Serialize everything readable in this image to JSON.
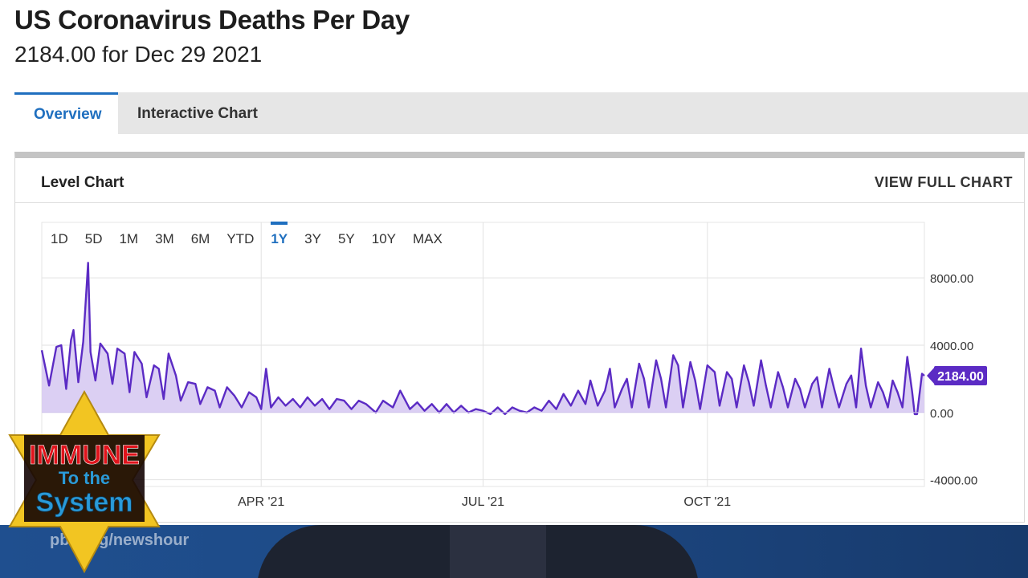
{
  "header": {
    "title": "US Coronavirus Deaths Per Day",
    "subtitle": "2184.00 for Dec 29 2021"
  },
  "tabs": [
    {
      "label": "Overview",
      "active": true
    },
    {
      "label": "Interactive Chart",
      "active": false
    }
  ],
  "panel": {
    "title": "Level Chart",
    "view_full_label": "VIEW FULL CHART"
  },
  "ranges": [
    "1D",
    "5D",
    "1M",
    "3M",
    "6M",
    "YTD",
    "1Y",
    "3Y",
    "5Y",
    "10Y",
    "MAX"
  ],
  "active_range": "1Y",
  "colors": {
    "accent": "#1f6fbf",
    "line": "#5b2bc4",
    "fill": "#d9ccf2",
    "badge_star": "#f2c522",
    "badge_text_red": "#e0141c",
    "badge_text_blue": "#2a9ad8"
  },
  "badge": {
    "line1": "IMMUNE",
    "line2": "To the",
    "line3": "System"
  },
  "watermark": "pbs.org/newshour",
  "chart_data": {
    "type": "area",
    "x_start": "2021-01-01",
    "x_end": "2021-12-29",
    "x_ticks": [
      {
        "date": "2021-04-01",
        "label": "APR '21"
      },
      {
        "date": "2021-07-01",
        "label": "JUL '21"
      },
      {
        "date": "2021-10-01",
        "label": "OCT '21"
      }
    ],
    "y_ticks": [
      8000,
      4000,
      0,
      -4000
    ],
    "y_tick_labels": [
      "8000.00",
      "4000.00",
      "0.00",
      "-4000.00"
    ],
    "ylim": [
      -4400,
      11300
    ],
    "last_value": 2184,
    "last_value_label": "2184.00",
    "grid": true,
    "series": [
      {
        "points": [
          [
            "2021-01-01",
            3700
          ],
          [
            "2021-01-04",
            1600
          ],
          [
            "2021-01-07",
            3900
          ],
          [
            "2021-01-09",
            4000
          ],
          [
            "2021-01-11",
            1400
          ],
          [
            "2021-01-13",
            4300
          ],
          [
            "2021-01-14",
            4900
          ],
          [
            "2021-01-16",
            1800
          ],
          [
            "2021-01-18",
            4200
          ],
          [
            "2021-01-20",
            8900
          ],
          [
            "2021-01-21",
            3600
          ],
          [
            "2021-01-23",
            1900
          ],
          [
            "2021-01-25",
            4100
          ],
          [
            "2021-01-28",
            3500
          ],
          [
            "2021-01-30",
            1700
          ],
          [
            "2021-02-01",
            3800
          ],
          [
            "2021-02-04",
            3500
          ],
          [
            "2021-02-06",
            1200
          ],
          [
            "2021-02-08",
            3600
          ],
          [
            "2021-02-11",
            2900
          ],
          [
            "2021-02-13",
            900
          ],
          [
            "2021-02-16",
            2800
          ],
          [
            "2021-02-18",
            2600
          ],
          [
            "2021-02-20",
            800
          ],
          [
            "2021-02-22",
            3500
          ],
          [
            "2021-02-25",
            2200
          ],
          [
            "2021-02-27",
            700
          ],
          [
            "2021-03-02",
            1800
          ],
          [
            "2021-03-05",
            1700
          ],
          [
            "2021-03-07",
            500
          ],
          [
            "2021-03-10",
            1500
          ],
          [
            "2021-03-13",
            1300
          ],
          [
            "2021-03-15",
            300
          ],
          [
            "2021-03-18",
            1500
          ],
          [
            "2021-03-21",
            1000
          ],
          [
            "2021-03-24",
            300
          ],
          [
            "2021-03-27",
            1200
          ],
          [
            "2021-03-30",
            900
          ],
          [
            "2021-04-01",
            200
          ],
          [
            "2021-04-03",
            2600
          ],
          [
            "2021-04-05",
            300
          ],
          [
            "2021-04-08",
            900
          ],
          [
            "2021-04-11",
            400
          ],
          [
            "2021-04-14",
            800
          ],
          [
            "2021-04-17",
            300
          ],
          [
            "2021-04-20",
            900
          ],
          [
            "2021-04-23",
            400
          ],
          [
            "2021-04-26",
            800
          ],
          [
            "2021-04-29",
            200
          ],
          [
            "2021-05-02",
            800
          ],
          [
            "2021-05-05",
            700
          ],
          [
            "2021-05-08",
            200
          ],
          [
            "2021-05-11",
            700
          ],
          [
            "2021-05-14",
            500
          ],
          [
            "2021-05-18",
            0
          ],
          [
            "2021-05-21",
            700
          ],
          [
            "2021-05-25",
            300
          ],
          [
            "2021-05-28",
            1300
          ],
          [
            "2021-06-01",
            200
          ],
          [
            "2021-06-04",
            600
          ],
          [
            "2021-06-07",
            100
          ],
          [
            "2021-06-10",
            500
          ],
          [
            "2021-06-13",
            0
          ],
          [
            "2021-06-16",
            500
          ],
          [
            "2021-06-19",
            0
          ],
          [
            "2021-06-22",
            400
          ],
          [
            "2021-06-25",
            0
          ],
          [
            "2021-06-28",
            200
          ],
          [
            "2021-07-01",
            100
          ],
          [
            "2021-07-04",
            -100
          ],
          [
            "2021-07-07",
            300
          ],
          [
            "2021-07-10",
            -100
          ],
          [
            "2021-07-13",
            300
          ],
          [
            "2021-07-16",
            100
          ],
          [
            "2021-07-19",
            0
          ],
          [
            "2021-07-22",
            300
          ],
          [
            "2021-07-25",
            100
          ],
          [
            "2021-07-28",
            700
          ],
          [
            "2021-07-31",
            200
          ],
          [
            "2021-08-03",
            1100
          ],
          [
            "2021-08-06",
            400
          ],
          [
            "2021-08-09",
            1300
          ],
          [
            "2021-08-12",
            500
          ],
          [
            "2021-08-14",
            1900
          ],
          [
            "2021-08-17",
            400
          ],
          [
            "2021-08-20",
            1300
          ],
          [
            "2021-08-22",
            2600
          ],
          [
            "2021-08-24",
            300
          ],
          [
            "2021-08-27",
            1400
          ],
          [
            "2021-08-29",
            2000
          ],
          [
            "2021-08-31",
            300
          ],
          [
            "2021-09-03",
            2900
          ],
          [
            "2021-09-05",
            2000
          ],
          [
            "2021-09-07",
            300
          ],
          [
            "2021-09-10",
            3100
          ],
          [
            "2021-09-12",
            2000
          ],
          [
            "2021-09-14",
            300
          ],
          [
            "2021-09-17",
            3400
          ],
          [
            "2021-09-19",
            2800
          ],
          [
            "2021-09-21",
            300
          ],
          [
            "2021-09-24",
            3000
          ],
          [
            "2021-09-26",
            1900
          ],
          [
            "2021-09-28",
            200
          ],
          [
            "2021-10-01",
            2800
          ],
          [
            "2021-10-04",
            2400
          ],
          [
            "2021-10-06",
            400
          ],
          [
            "2021-10-09",
            2400
          ],
          [
            "2021-10-11",
            2000
          ],
          [
            "2021-10-13",
            300
          ],
          [
            "2021-10-16",
            2800
          ],
          [
            "2021-10-18",
            1800
          ],
          [
            "2021-10-20",
            400
          ],
          [
            "2021-10-23",
            3100
          ],
          [
            "2021-10-25",
            1600
          ],
          [
            "2021-10-27",
            300
          ],
          [
            "2021-10-30",
            2400
          ],
          [
            "2021-11-01",
            1500
          ],
          [
            "2021-11-03",
            300
          ],
          [
            "2021-11-06",
            2000
          ],
          [
            "2021-11-08",
            1400
          ],
          [
            "2021-11-10",
            300
          ],
          [
            "2021-11-13",
            1700
          ],
          [
            "2021-11-15",
            2100
          ],
          [
            "2021-11-17",
            300
          ],
          [
            "2021-11-20",
            2600
          ],
          [
            "2021-11-22",
            1400
          ],
          [
            "2021-11-24",
            300
          ],
          [
            "2021-11-27",
            1700
          ],
          [
            "2021-11-29",
            2200
          ],
          [
            "2021-12-01",
            300
          ],
          [
            "2021-12-03",
            3800
          ],
          [
            "2021-12-05",
            1600
          ],
          [
            "2021-12-07",
            300
          ],
          [
            "2021-12-10",
            1800
          ],
          [
            "2021-12-12",
            1200
          ],
          [
            "2021-12-14",
            300
          ],
          [
            "2021-12-16",
            1900
          ],
          [
            "2021-12-18",
            1200
          ],
          [
            "2021-12-20",
            300
          ],
          [
            "2021-12-22",
            3300
          ],
          [
            "2021-12-24",
            1200
          ],
          [
            "2021-12-25",
            -100
          ],
          [
            "2021-12-26",
            -100
          ],
          [
            "2021-12-28",
            2300
          ],
          [
            "2021-12-29",
            2184
          ]
        ]
      }
    ]
  }
}
